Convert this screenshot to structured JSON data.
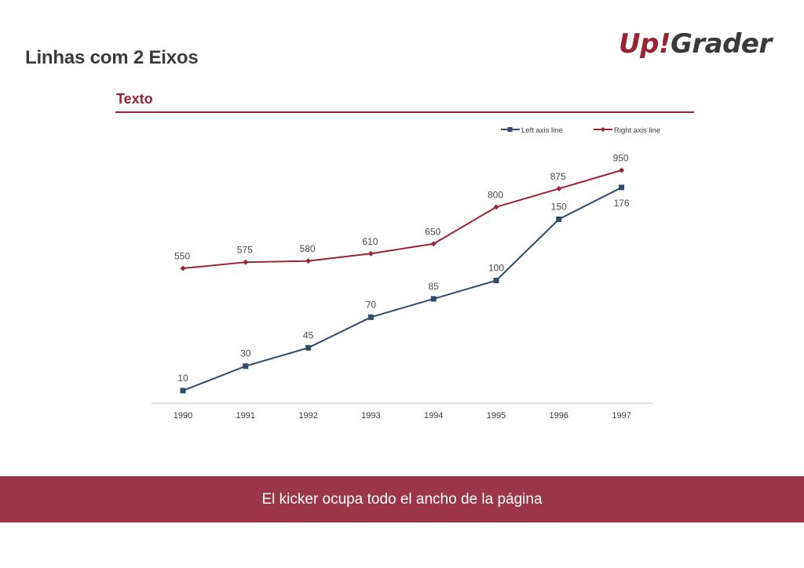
{
  "header": {
    "title": "Linhas com 2 Eixos",
    "logo_part1": "Up!",
    "logo_part2": "Grader"
  },
  "section": {
    "title": "Texto"
  },
  "colors": {
    "accent": "#9b2335",
    "left_series": "#2f4b6e",
    "right_series": "#9b2335",
    "footer_bg": "#9b3549"
  },
  "chart_data": {
    "type": "line",
    "title": "",
    "xlabel": "",
    "ylabel": "",
    "categories": [
      "1990",
      "1991",
      "1992",
      "1993",
      "1994",
      "1995",
      "1996",
      "1997"
    ],
    "series": [
      {
        "name": "Left axis line",
        "axis": "left",
        "marker": "square",
        "color": "#2f4b6e",
        "values": [
          10,
          30,
          45,
          70,
          85,
          100,
          150,
          176
        ]
      },
      {
        "name": "Right axis line",
        "axis": "right",
        "marker": "diamond",
        "color": "#9b2335",
        "values": [
          550,
          575,
          580,
          610,
          650,
          800,
          875,
          950
        ]
      }
    ],
    "ylim_left": [
      0,
      180
    ],
    "ylim_right": [
      300,
      1000
    ],
    "legend_position": "top-right",
    "grid": false,
    "data_labels": true
  },
  "footer": {
    "text": "El kicker ocupa todo el ancho de la página"
  }
}
